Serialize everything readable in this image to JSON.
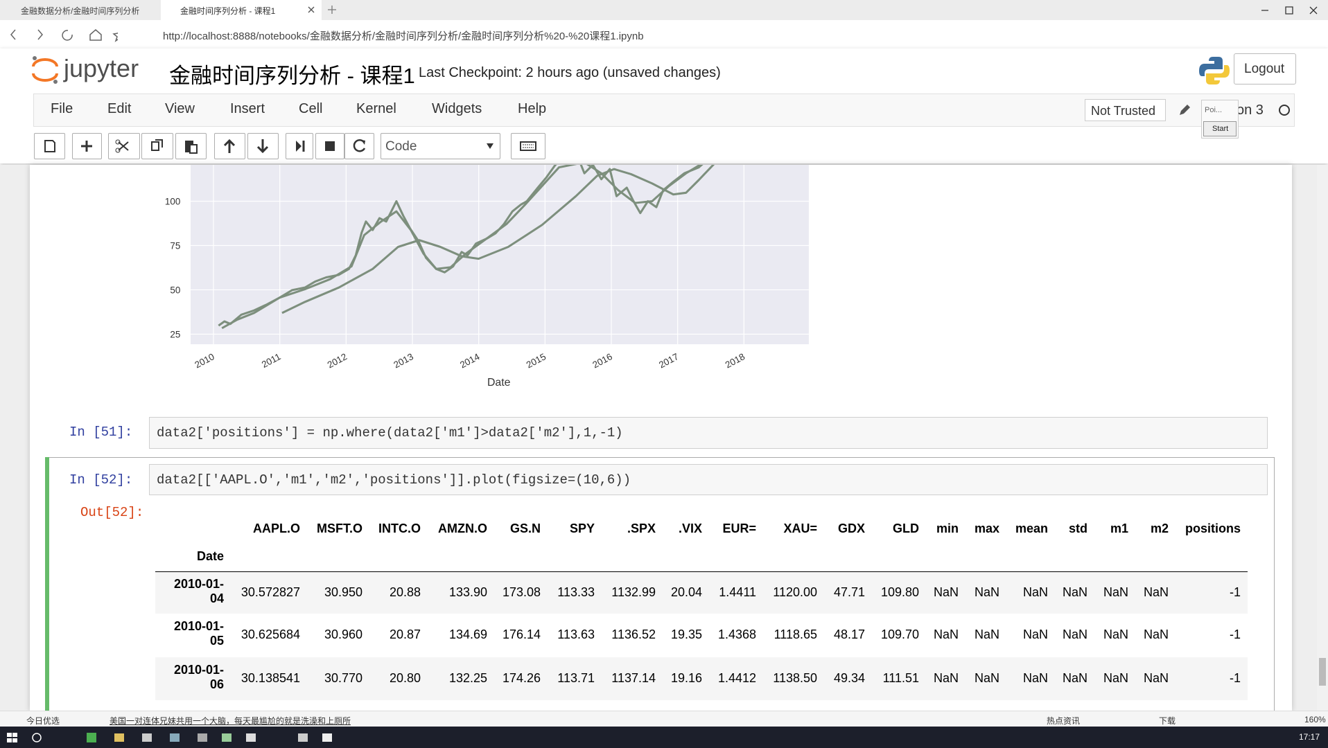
{
  "browser": {
    "tabs": [
      "金融数据分析/金融时间序列分析",
      "金融时间序列分析 - 课程1"
    ],
    "url": "http://localhost:8888/notebooks/金融数据分析/金融时间序列分析/金融时间序列分析%20-%20课程1.ipynb",
    "status_bar": {
      "left": "今日优选",
      "news": "美国一对连体兄妹共用一个大脑，每天最尴尬的就是洗澡和上厕所",
      "hot": "热点资讯",
      "download": "下载",
      "zoom": "160%"
    },
    "taskbar_time": "17:17"
  },
  "header": {
    "logo": "jupyter",
    "notebook_name": "金融时间序列分析 - 课程1",
    "checkpoint": "Last Checkpoint: 2 hours ago (unsaved changes)",
    "logout": "Logout"
  },
  "menu": [
    "File",
    "Edit",
    "View",
    "Insert",
    "Cell",
    "Kernel",
    "Widgets",
    "Help"
  ],
  "trusted": "Not Trusted",
  "kernel": "on 3",
  "popup": {
    "text": "Poi...",
    "button": "Start"
  },
  "toolbar": {
    "cell_type": "Code"
  },
  "plot": {
    "ylim": [
      19.3,
      120.5
    ],
    "yticks": [
      25,
      50,
      75,
      100
    ],
    "xticks": [
      "2010",
      "2011",
      "2012",
      "2013",
      "2014",
      "2015",
      "2016",
      "2017",
      "2018"
    ],
    "xlabel": "Date"
  },
  "cells": [
    {
      "prompt": "In  [51]:",
      "code": "data2['positions'] = np.where(data2['m1']>data2['m2'],1,-1)"
    },
    {
      "prompt": "In  [52]:",
      "code": "data2[['AAPL.O','m1','m2','positions']].plot(figsize=(10,6))",
      "out_prompt": "Out[52]:"
    }
  ],
  "table": {
    "columns": [
      "AAPL.O",
      "MSFT.O",
      "INTC.O",
      "AMZN.O",
      "GS.N",
      "SPY",
      ".SPX",
      ".VIX",
      "EUR=",
      "XAU=",
      "GDX",
      "GLD",
      "min",
      "max",
      "mean",
      "std",
      "m1",
      "m2",
      "positions"
    ],
    "index_name": "Date",
    "rows": [
      {
        "index": "2010-01-04",
        "cells": [
          "30.572827",
          "30.950",
          "20.88",
          "133.90",
          "173.08",
          "113.33",
          "1132.99",
          "20.04",
          "1.4411",
          "1120.00",
          "47.71",
          "109.80",
          "NaN",
          "NaN",
          "NaN",
          "NaN",
          "NaN",
          "NaN",
          "-1"
        ]
      },
      {
        "index": "2010-01-05",
        "cells": [
          "30.625684",
          "30.960",
          "20.87",
          "134.69",
          "176.14",
          "113.63",
          "1136.52",
          "19.35",
          "1.4368",
          "1118.65",
          "48.17",
          "109.70",
          "NaN",
          "NaN",
          "NaN",
          "NaN",
          "NaN",
          "NaN",
          "-1"
        ]
      },
      {
        "index": "2010-01-06",
        "cells": [
          "30.138541",
          "30.770",
          "20.80",
          "132.25",
          "174.26",
          "113.71",
          "1137.14",
          "19.16",
          "1.4412",
          "1138.50",
          "49.34",
          "111.51",
          "NaN",
          "NaN",
          "NaN",
          "NaN",
          "NaN",
          "NaN",
          "-1"
        ]
      }
    ]
  }
}
